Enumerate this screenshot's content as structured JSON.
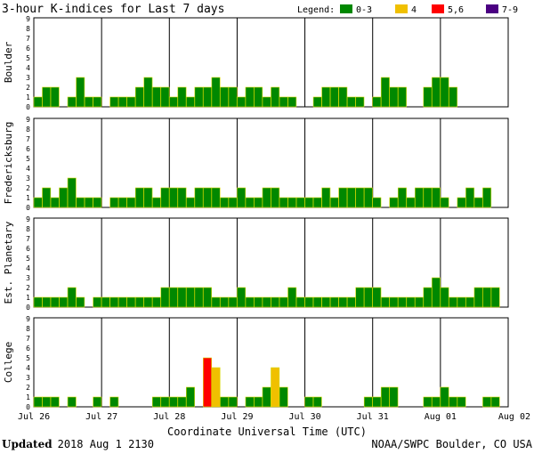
{
  "chart_data": {
    "type": "bar",
    "title": "3-hour K-indices for Last 7 days",
    "legend": {
      "label": "Legend:",
      "entries": [
        {
          "name": "0-3",
          "color": "#008800"
        },
        {
          "name": "4",
          "color": "#f0c000"
        },
        {
          "name": "5,6",
          "color": "#ff0000"
        },
        {
          "name": "7-9",
          "color": "#4b0082"
        }
      ]
    },
    "bar_edge_color": "#d8d800",
    "ylim": [
      0,
      9
    ],
    "yticks": [
      0,
      1,
      2,
      3,
      4,
      5,
      6,
      7,
      8,
      9
    ],
    "x_tick_labels": [
      "Jul 26",
      "Jul 27",
      "Jul 28",
      "Jul 29",
      "Jul 30",
      "Jul 31",
      "Aug 01",
      "Aug 02"
    ],
    "xlabel": "Coordinate Universal Time (UTC)",
    "series": [
      {
        "name": "Boulder",
        "values": [
          1,
          2,
          2,
          0,
          1,
          3,
          1,
          1,
          0,
          1,
          1,
          1,
          2,
          3,
          2,
          2,
          1,
          2,
          1,
          2,
          2,
          3,
          2,
          2,
          1,
          2,
          2,
          1,
          2,
          1,
          1,
          0,
          0,
          1,
          2,
          2,
          2,
          1,
          1,
          0,
          1,
          3,
          2,
          2,
          0,
          0,
          2,
          3,
          3,
          2,
          0
        ]
      },
      {
        "name": "Fredericksburg",
        "values": [
          1,
          2,
          1,
          2,
          3,
          1,
          1,
          1,
          0,
          1,
          1,
          1,
          2,
          2,
          1,
          2,
          2,
          2,
          1,
          2,
          2,
          2,
          1,
          1,
          2,
          1,
          1,
          2,
          2,
          1,
          1,
          1,
          1,
          1,
          2,
          1,
          2,
          2,
          2,
          2,
          1,
          0,
          1,
          2,
          1,
          2,
          2,
          2,
          1,
          0,
          1,
          2,
          1,
          2,
          0
        ]
      },
      {
        "name": "Est. Planetary",
        "values": [
          1,
          1,
          1,
          1,
          2,
          1,
          0,
          1,
          1,
          1,
          1,
          1,
          1,
          1,
          1,
          2,
          2,
          2,
          2,
          2,
          2,
          1,
          1,
          1,
          2,
          1,
          1,
          1,
          1,
          1,
          2,
          1,
          1,
          1,
          1,
          1,
          1,
          1,
          2,
          2,
          2,
          1,
          1,
          1,
          1,
          1,
          2,
          3,
          2,
          1,
          1,
          1,
          2,
          2,
          2
        ]
      },
      {
        "name": "College",
        "values": [
          1,
          1,
          1,
          0,
          1,
          0,
          0,
          1,
          0,
          1,
          0,
          0,
          0,
          0,
          1,
          1,
          1,
          1,
          2,
          0,
          5,
          4,
          1,
          1,
          0,
          1,
          1,
          2,
          4,
          2,
          0,
          0,
          1,
          1,
          0,
          0,
          0,
          0,
          0,
          1,
          1,
          2,
          2,
          0,
          0,
          0,
          1,
          1,
          2,
          1,
          1,
          0,
          0,
          1,
          1,
          0
        ]
      }
    ]
  },
  "footer": {
    "updated_label": "Updated",
    "updated_value": "2018 Aug  1 2130",
    "credit": "NOAA/SWPC Boulder, CO USA"
  }
}
